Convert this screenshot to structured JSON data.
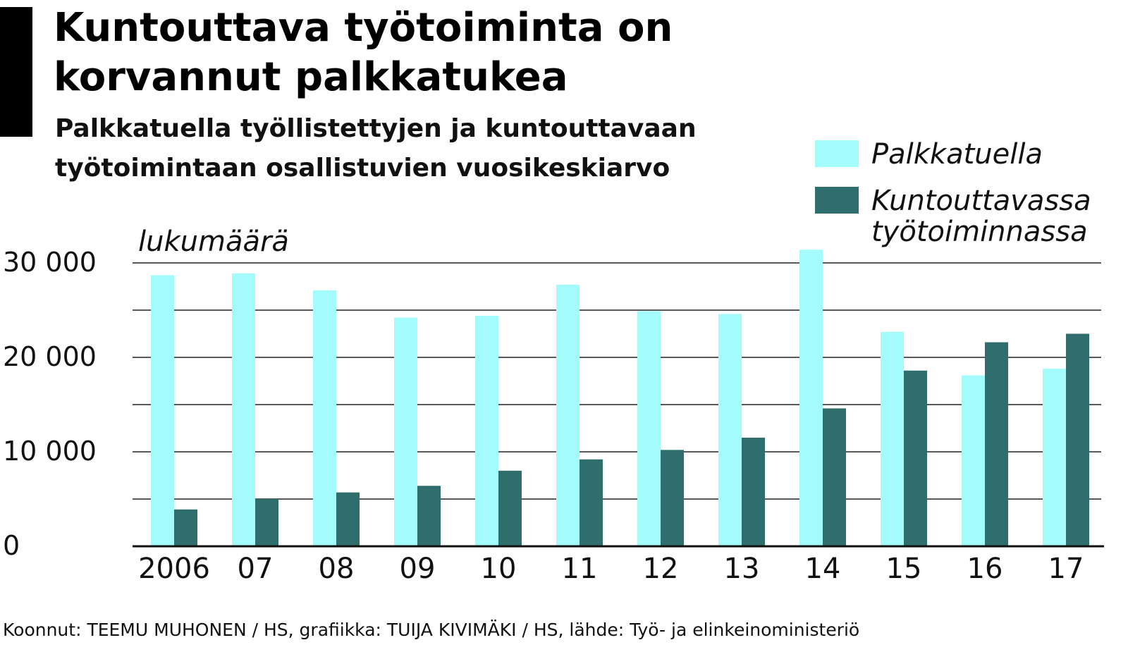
{
  "title_line1": "Kuntouttava työtoiminta on",
  "title_line2": "korvannut palkkatukea",
  "subtitle_line1": "Palkkatuella työllistettyjen ja kuntouttavaan",
  "subtitle_line2": "työtoimintaan osallistuvien vuosikeskiarvo",
  "unit_label": "lukumäärä",
  "legend": {
    "palkkatuella": "Palkkatuella",
    "kuntouttavassa_line1": "Kuntouttavassa",
    "kuntouttavassa_line2": "työtoiminnassa"
  },
  "credits": "Koonnut: TEEMU MUHONEN / HS, grafiikka: TUIJA KIVIMÄKI / HS, lähde: Työ- ja elinkeinoministeriö",
  "colors": {
    "palkkatuella": "#a3fbfb",
    "kuntouttavassa": "#2f6e6c"
  },
  "chart_data": {
    "type": "bar",
    "categories": [
      "2006",
      "07",
      "08",
      "09",
      "10",
      "11",
      "12",
      "13",
      "14",
      "15",
      "16",
      "17"
    ],
    "series": [
      {
        "name": "Palkkatuella",
        "values": [
          28700,
          28900,
          27100,
          24200,
          24400,
          27700,
          24900,
          24600,
          31400,
          22700,
          18100,
          18800
        ]
      },
      {
        "name": "Kuntouttavassa työtoiminnassa",
        "values": [
          3900,
          5000,
          5700,
          6400,
          8000,
          9200,
          10200,
          11500,
          14600,
          18600,
          21600,
          22500
        ]
      }
    ],
    "yticks": [
      "0",
      "10 000",
      "20 000",
      "30 000"
    ],
    "ytick_values": [
      0,
      10000,
      20000,
      30000
    ],
    "ylim": [
      0,
      30000
    ],
    "gridlines": [
      5000,
      10000,
      15000,
      20000,
      25000,
      30000
    ],
    "grid": true,
    "legend_position": "top-right"
  }
}
